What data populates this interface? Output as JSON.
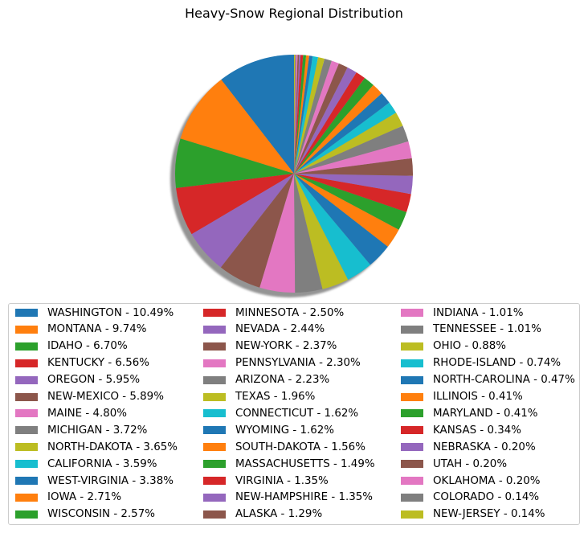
{
  "chart_data": {
    "type": "pie",
    "title": "Heavy-Snow Regional Distribution",
    "shadow": true,
    "legend_placement": "bottom",
    "legend_columns": 3,
    "slices": [
      {
        "label": "WASHINGTON - 10.49%",
        "value": 10.49,
        "color": "#1f77b4"
      },
      {
        "label": "MONTANA - 9.74%",
        "value": 9.74,
        "color": "#ff7f0e"
      },
      {
        "label": "IDAHO - 6.70%",
        "value": 6.7,
        "color": "#2ca02c"
      },
      {
        "label": "KENTUCKY - 6.56%",
        "value": 6.56,
        "color": "#d62728"
      },
      {
        "label": "OREGON - 5.95%",
        "value": 5.95,
        "color": "#9467bd"
      },
      {
        "label": "NEW-MEXICO - 5.89%",
        "value": 5.89,
        "color": "#8c564b"
      },
      {
        "label": "MAINE - 4.80%",
        "value": 4.8,
        "color": "#e377c2"
      },
      {
        "label": "MICHIGAN - 3.72%",
        "value": 3.72,
        "color": "#7f7f7f"
      },
      {
        "label": "NORTH-DAKOTA - 3.65%",
        "value": 3.65,
        "color": "#bcbd22"
      },
      {
        "label": "CALIFORNIA - 3.59%",
        "value": 3.59,
        "color": "#17becf"
      },
      {
        "label": "WEST-VIRGINIA - 3.38%",
        "value": 3.38,
        "color": "#1f77b4"
      },
      {
        "label": "IOWA - 2.71%",
        "value": 2.71,
        "color": "#ff7f0e"
      },
      {
        "label": "WISCONSIN - 2.57%",
        "value": 2.57,
        "color": "#2ca02c"
      },
      {
        "label": "MINNESOTA - 2.50%",
        "value": 2.5,
        "color": "#d62728"
      },
      {
        "label": "NEVADA - 2.44%",
        "value": 2.44,
        "color": "#9467bd"
      },
      {
        "label": "NEW-YORK - 2.37%",
        "value": 2.37,
        "color": "#8c564b"
      },
      {
        "label": "PENNSYLVANIA - 2.30%",
        "value": 2.3,
        "color": "#e377c2"
      },
      {
        "label": "ARIZONA - 2.23%",
        "value": 2.23,
        "color": "#7f7f7f"
      },
      {
        "label": "TEXAS - 1.96%",
        "value": 1.96,
        "color": "#bcbd22"
      },
      {
        "label": "CONNECTICUT - 1.62%",
        "value": 1.62,
        "color": "#17becf"
      },
      {
        "label": "WYOMING - 1.62%",
        "value": 1.62,
        "color": "#1f77b4"
      },
      {
        "label": "SOUTH-DAKOTA - 1.56%",
        "value": 1.56,
        "color": "#ff7f0e"
      },
      {
        "label": "MASSACHUSETTS - 1.49%",
        "value": 1.49,
        "color": "#2ca02c"
      },
      {
        "label": "VIRGINIA - 1.35%",
        "value": 1.35,
        "color": "#d62728"
      },
      {
        "label": "NEW-HAMPSHIRE - 1.35%",
        "value": 1.35,
        "color": "#9467bd"
      },
      {
        "label": "ALASKA - 1.29%",
        "value": 1.29,
        "color": "#8c564b"
      },
      {
        "label": "INDIANA - 1.01%",
        "value": 1.01,
        "color": "#e377c2"
      },
      {
        "label": "TENNESSEE - 1.01%",
        "value": 1.01,
        "color": "#7f7f7f"
      },
      {
        "label": "OHIO - 0.88%",
        "value": 0.88,
        "color": "#bcbd22"
      },
      {
        "label": "RHODE-ISLAND - 0.74%",
        "value": 0.74,
        "color": "#17becf"
      },
      {
        "label": "NORTH-CAROLINA - 0.47%",
        "value": 0.47,
        "color": "#1f77b4"
      },
      {
        "label": "ILLINOIS - 0.41%",
        "value": 0.41,
        "color": "#ff7f0e"
      },
      {
        "label": "MARYLAND - 0.41%",
        "value": 0.41,
        "color": "#2ca02c"
      },
      {
        "label": "KANSAS - 0.34%",
        "value": 0.34,
        "color": "#d62728"
      },
      {
        "label": "NEBRASKA - 0.20%",
        "value": 0.2,
        "color": "#9467bd"
      },
      {
        "label": "UTAH - 0.20%",
        "value": 0.2,
        "color": "#8c564b"
      },
      {
        "label": "OKLAHOMA - 0.20%",
        "value": 0.2,
        "color": "#e377c2"
      },
      {
        "label": "COLORADO - 0.14%",
        "value": 0.14,
        "color": "#7f7f7f"
      },
      {
        "label": "NEW-JERSEY - 0.14%",
        "value": 0.14,
        "color": "#bcbd22"
      }
    ]
  }
}
